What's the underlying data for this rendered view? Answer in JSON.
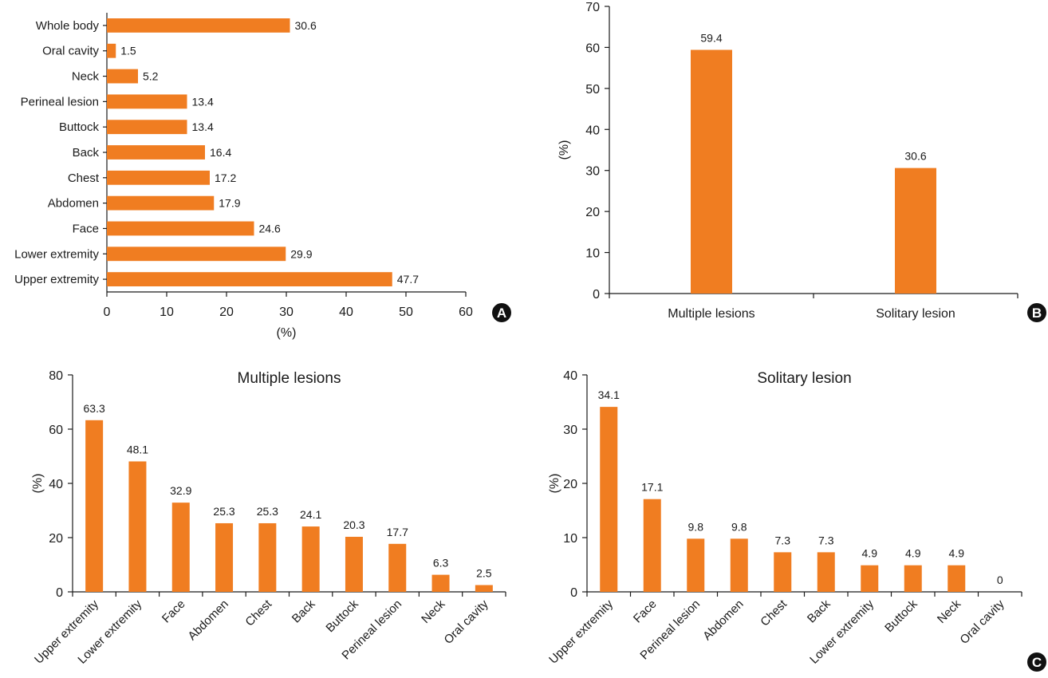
{
  "bar_color": "#F07D21",
  "chart_data": [
    {
      "panel": "A",
      "type": "bar",
      "orientation": "horizontal",
      "categories": [
        "Whole body",
        "Oral cavity",
        "Neck",
        "Perineal lesion",
        "Buttock",
        "Back",
        "Chest",
        "Abdomen",
        "Face",
        "Lower extremity",
        "Upper extremity"
      ],
      "values": [
        30.6,
        1.5,
        5.2,
        13.4,
        13.4,
        16.4,
        17.2,
        17.9,
        24.6,
        29.9,
        47.7
      ],
      "data_labels": [
        "30.6",
        "1.5",
        "5.2",
        "13.4",
        "13.4",
        "16.4",
        "17.2",
        "17.9",
        "24.6",
        "29.9",
        "47.7"
      ],
      "xlabel": "(%)",
      "xlim": [
        0,
        60
      ],
      "xticks": [
        0,
        10,
        20,
        30,
        40,
        50,
        60
      ],
      "grid": false
    },
    {
      "panel": "B",
      "type": "bar",
      "categories": [
        "Multiple lesions",
        "Solitary lesion"
      ],
      "values": [
        59.4,
        30.6
      ],
      "data_labels": [
        "59.4",
        "30.6"
      ],
      "ylabel": "(%)",
      "ylim": [
        0,
        70
      ],
      "yticks": [
        0,
        10,
        20,
        30,
        40,
        50,
        60,
        70
      ],
      "grid": false
    },
    {
      "panel": "C",
      "type": "bar",
      "title": "Multiple lesions",
      "categories": [
        "Upper extremity",
        "Lower extremity",
        "Face",
        "Abdomen",
        "Chest",
        "Back",
        "Buttock",
        "Perineal lesion",
        "Neck",
        "Oral cavity"
      ],
      "values": [
        63.3,
        48.1,
        32.9,
        25.3,
        25.3,
        24.1,
        20.3,
        17.7,
        6.3,
        2.5
      ],
      "data_labels": [
        "63.3",
        "48.1",
        "32.9",
        "25.3",
        "25.3",
        "24.1",
        "20.3",
        "17.7",
        "6.3",
        "2.5"
      ],
      "ylabel": "(%)",
      "ylim": [
        0,
        80
      ],
      "yticks": [
        0,
        20,
        40,
        60,
        80
      ],
      "grid": false
    },
    {
      "panel": "C",
      "type": "bar",
      "title": "Solitary lesion",
      "categories": [
        "Upper extremity",
        "Face",
        "Perineal lesion",
        "Abdomen",
        "Chest",
        "Back",
        "Lower extremity",
        "Buttock",
        "Neck",
        "Oral cavity"
      ],
      "values": [
        34.1,
        17.1,
        9.8,
        9.8,
        7.3,
        7.3,
        4.9,
        4.9,
        4.9,
        0
      ],
      "data_labels": [
        "34.1",
        "17.1",
        "9.8",
        "9.8",
        "7.3",
        "7.3",
        "4.9",
        "4.9",
        "4.9",
        "0"
      ],
      "ylabel": "(%)",
      "ylim": [
        0,
        40
      ],
      "yticks": [
        0,
        10,
        20,
        30,
        40
      ],
      "grid": false
    }
  ],
  "panel_badges": [
    "A",
    "B",
    "C"
  ]
}
